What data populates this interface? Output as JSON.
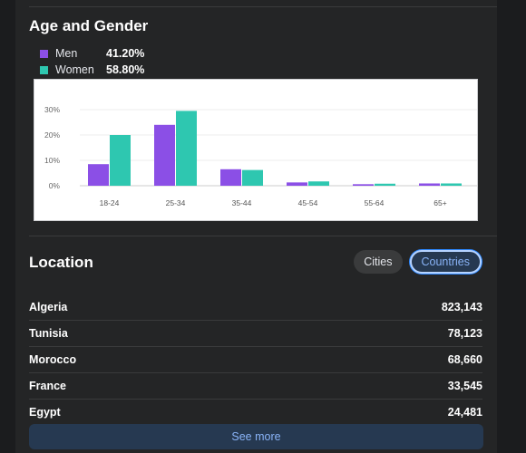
{
  "age_gender": {
    "title": "Age and Gender",
    "legend": [
      {
        "name": "Men",
        "pct": "41.20%",
        "color": "#8b4fe6"
      },
      {
        "name": "Women",
        "pct": "58.80%",
        "color": "#2ec7b0"
      }
    ]
  },
  "chart_data": {
    "type": "bar",
    "categories": [
      "18-24",
      "25-34",
      "35-44",
      "45-54",
      "55-64",
      "65+"
    ],
    "series": [
      {
        "name": "Men",
        "color": "#8b4fe6",
        "values": [
          8.5,
          24,
          6.5,
          1.3,
          0.6,
          0.9
        ]
      },
      {
        "name": "Women",
        "color": "#2ec7b0",
        "values": [
          20,
          29.5,
          6.2,
          1.7,
          0.8,
          0.9
        ]
      }
    ],
    "yticks": [
      "0%",
      "10%",
      "20%",
      "30%"
    ],
    "ylim": [
      0,
      30
    ],
    "grid": true
  },
  "location": {
    "title": "Location",
    "tabs": [
      "Cities",
      "Countries"
    ],
    "active_tab": "Countries",
    "rows": [
      {
        "name": "Algeria",
        "value": "823,143"
      },
      {
        "name": "Tunisia",
        "value": "78,123"
      },
      {
        "name": "Morocco",
        "value": "68,660"
      },
      {
        "name": "France",
        "value": "33,545"
      },
      {
        "name": "Egypt",
        "value": "24,481"
      }
    ],
    "see_more_label": "See more"
  }
}
